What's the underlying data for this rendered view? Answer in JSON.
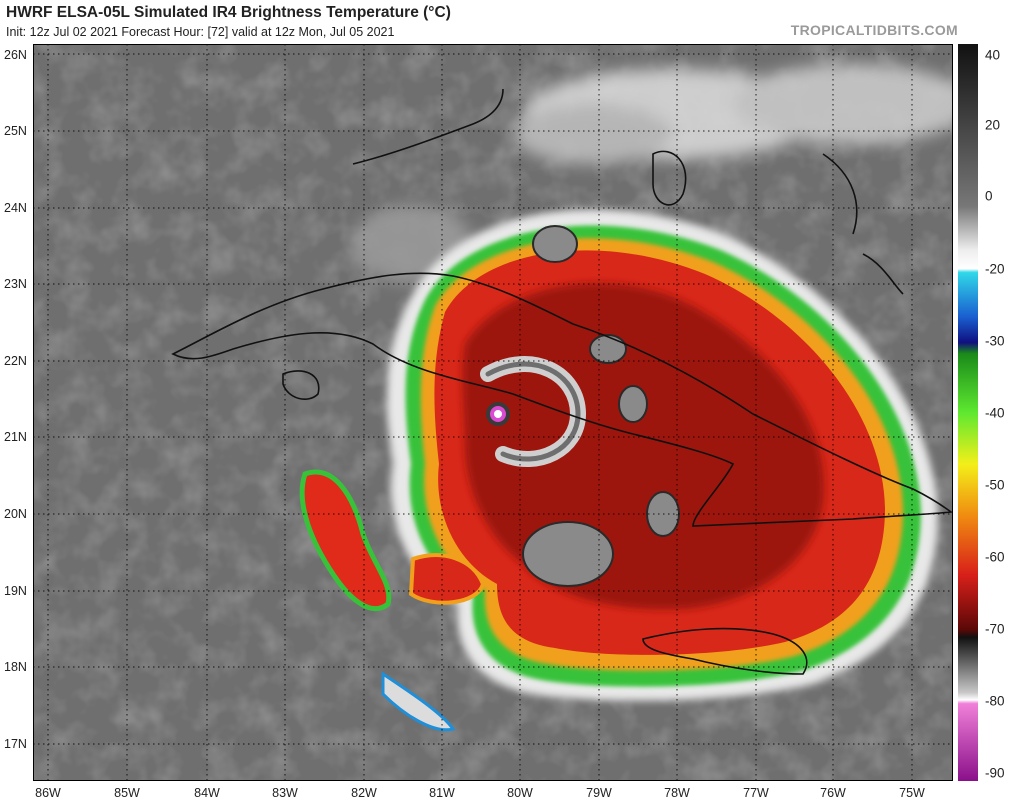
{
  "header": {
    "title": "HWRF ELSA-05L Simulated IR4 Brightness Temperature (°C)",
    "subtitle": "Init: 12z Jul 02 2021   Forecast Hour: [72]   valid at 12z Mon, Jul 05 2021",
    "credit": "TROPICALTIDBITS.COM"
  },
  "colorbar": {
    "ticks": [
      "40",
      "20",
      "0",
      "-20",
      "-30",
      "-40",
      "-50",
      "-60",
      "-70",
      "-80",
      "-90"
    ]
  },
  "axes": {
    "lat_labels": [
      "26N",
      "25N",
      "24N",
      "23N",
      "22N",
      "21N",
      "20N",
      "19N",
      "18N",
      "17N"
    ],
    "lon_labels": [
      "86W",
      "85W",
      "84W",
      "83W",
      "82W",
      "81W",
      "80W",
      "79W",
      "78W",
      "77W",
      "76W",
      "75W"
    ]
  }
}
